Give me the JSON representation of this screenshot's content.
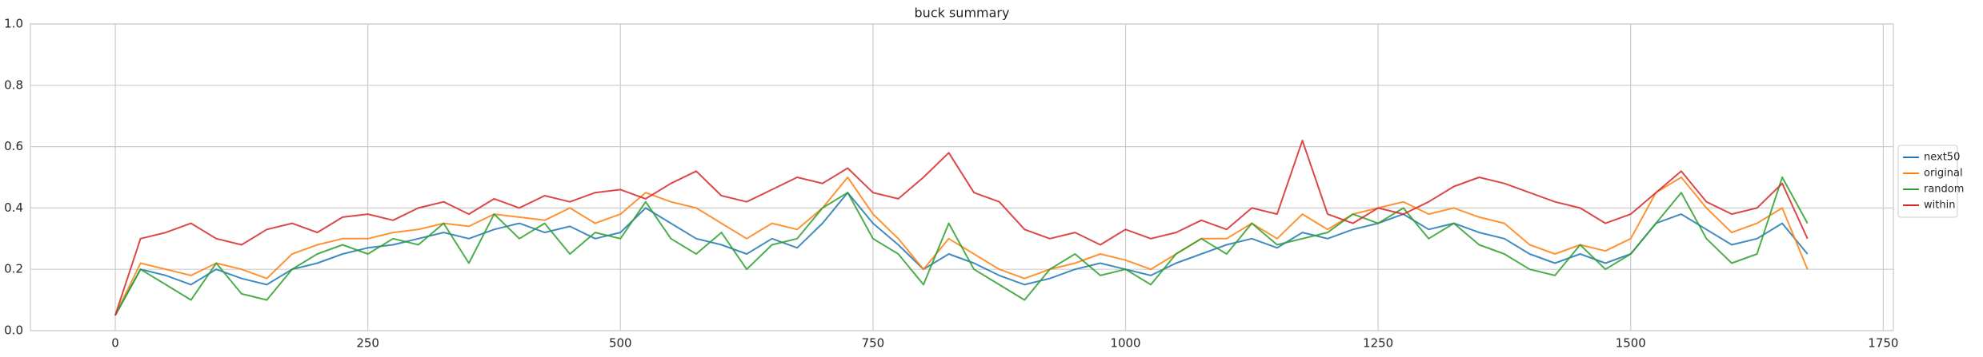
{
  "chart_data": {
    "type": "line",
    "title": "buck summary",
    "x": [
      0,
      25,
      50,
      75,
      100,
      125,
      150,
      175,
      200,
      225,
      250,
      275,
      300,
      325,
      350,
      375,
      400,
      425,
      450,
      475,
      500,
      525,
      550,
      575,
      600,
      625,
      650,
      675,
      700,
      725,
      750,
      775,
      800,
      825,
      850,
      875,
      900,
      925,
      950,
      975,
      1000,
      1025,
      1050,
      1075,
      1100,
      1125,
      1150,
      1175,
      1200,
      1225,
      1250,
      1275,
      1300,
      1325,
      1350,
      1375,
      1400,
      1425,
      1450,
      1475,
      1500,
      1525,
      1550,
      1575,
      1600,
      1625,
      1650,
      1675
    ],
    "series": [
      {
        "name": "next50",
        "color": "#1f77b4",
        "values": [
          0.05,
          0.2,
          0.18,
          0.15,
          0.2,
          0.17,
          0.15,
          0.2,
          0.22,
          0.25,
          0.27,
          0.28,
          0.3,
          0.32,
          0.3,
          0.33,
          0.35,
          0.32,
          0.34,
          0.3,
          0.32,
          0.4,
          0.35,
          0.3,
          0.28,
          0.25,
          0.3,
          0.27,
          0.35,
          0.45,
          0.35,
          0.28,
          0.2,
          0.25,
          0.22,
          0.18,
          0.15,
          0.17,
          0.2,
          0.22,
          0.2,
          0.18,
          0.22,
          0.25,
          0.28,
          0.3,
          0.27,
          0.32,
          0.3,
          0.33,
          0.35,
          0.38,
          0.33,
          0.35,
          0.32,
          0.3,
          0.25,
          0.22,
          0.25,
          0.22,
          0.25,
          0.35,
          0.38,
          0.33,
          0.28,
          0.3,
          0.35,
          0.25
        ]
      },
      {
        "name": "original",
        "color": "#ff7f0e",
        "values": [
          0.05,
          0.22,
          0.2,
          0.18,
          0.22,
          0.2,
          0.17,
          0.25,
          0.28,
          0.3,
          0.3,
          0.32,
          0.33,
          0.35,
          0.34,
          0.38,
          0.37,
          0.36,
          0.4,
          0.35,
          0.38,
          0.45,
          0.42,
          0.4,
          0.35,
          0.3,
          0.35,
          0.33,
          0.4,
          0.5,
          0.38,
          0.3,
          0.2,
          0.3,
          0.25,
          0.2,
          0.17,
          0.2,
          0.22,
          0.25,
          0.23,
          0.2,
          0.25,
          0.3,
          0.3,
          0.35,
          0.3,
          0.38,
          0.33,
          0.38,
          0.4,
          0.42,
          0.38,
          0.4,
          0.37,
          0.35,
          0.28,
          0.25,
          0.28,
          0.26,
          0.3,
          0.45,
          0.5,
          0.4,
          0.32,
          0.35,
          0.4,
          0.2
        ]
      },
      {
        "name": "random",
        "color": "#2ca02c",
        "values": [
          0.05,
          0.2,
          0.15,
          0.1,
          0.22,
          0.12,
          0.1,
          0.2,
          0.25,
          0.28,
          0.25,
          0.3,
          0.28,
          0.35,
          0.22,
          0.38,
          0.3,
          0.35,
          0.25,
          0.32,
          0.3,
          0.42,
          0.3,
          0.25,
          0.32,
          0.2,
          0.28,
          0.3,
          0.4,
          0.45,
          0.3,
          0.25,
          0.15,
          0.35,
          0.2,
          0.15,
          0.1,
          0.2,
          0.25,
          0.18,
          0.2,
          0.15,
          0.25,
          0.3,
          0.25,
          0.35,
          0.28,
          0.3,
          0.32,
          0.38,
          0.35,
          0.4,
          0.3,
          0.35,
          0.28,
          0.25,
          0.2,
          0.18,
          0.28,
          0.2,
          0.25,
          0.35,
          0.45,
          0.3,
          0.22,
          0.25,
          0.5,
          0.35
        ]
      },
      {
        "name": "within",
        "color": "#d62728",
        "values": [
          0.05,
          0.3,
          0.32,
          0.35,
          0.3,
          0.28,
          0.33,
          0.35,
          0.32,
          0.37,
          0.38,
          0.36,
          0.4,
          0.42,
          0.38,
          0.43,
          0.4,
          0.44,
          0.42,
          0.45,
          0.46,
          0.43,
          0.48,
          0.52,
          0.44,
          0.42,
          0.46,
          0.5,
          0.48,
          0.53,
          0.45,
          0.43,
          0.5,
          0.58,
          0.45,
          0.42,
          0.33,
          0.3,
          0.32,
          0.28,
          0.33,
          0.3,
          0.32,
          0.36,
          0.33,
          0.4,
          0.38,
          0.62,
          0.38,
          0.35,
          0.4,
          0.38,
          0.42,
          0.47,
          0.5,
          0.48,
          0.45,
          0.42,
          0.4,
          0.35,
          0.38,
          0.45,
          0.52,
          0.42,
          0.38,
          0.4,
          0.48,
          0.3
        ]
      }
    ],
    "xlim": [
      -84,
      1760
    ],
    "ylim": [
      0,
      1
    ],
    "xticks": [
      0,
      250,
      500,
      750,
      1000,
      1250,
      1500,
      1750
    ],
    "yticks": [
      {
        "value": 0,
        "label": "0.0"
      },
      0.2,
      0.4,
      0.6,
      0.8,
      {
        "value": 1,
        "label": "1.0"
      }
    ],
    "grid": true,
    "legend": "right"
  }
}
